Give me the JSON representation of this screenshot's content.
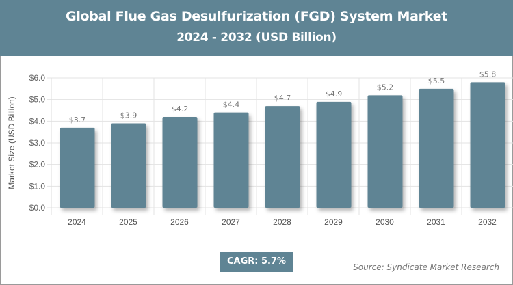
{
  "header": {
    "title": "Global Flue Gas Desulfurization (FGD) System Market",
    "subtitle": "2024 - 2032 (USD Billion)"
  },
  "cagr": "CAGR: 5.7%",
  "source": "Source: Syndicate Market Research",
  "colors": {
    "bar": "#5f8494",
    "header": "#5f8494"
  },
  "chart_data": {
    "type": "bar",
    "title": "Global Flue Gas Desulfurization (FGD) System Market",
    "subtitle": "2024 - 2032 (USD Billion)",
    "xlabel": "",
    "ylabel": "Market Size (USD Billion)",
    "categories": [
      "2024",
      "2025",
      "2026",
      "2027",
      "2028",
      "2029",
      "2030",
      "2031",
      "2032"
    ],
    "values": [
      3.7,
      3.9,
      4.2,
      4.4,
      4.7,
      4.9,
      5.2,
      5.5,
      5.8
    ],
    "data_labels": [
      "$3.7",
      "$3.9",
      "$4.2",
      "$4.4",
      "$4.7",
      "$4.9",
      "$5.2",
      "$5.5",
      "$5.8"
    ],
    "yticks": [
      "$0.0",
      "$1.0",
      "$2.0",
      "$3.0",
      "$4.0",
      "$5.0",
      "$6.0"
    ],
    "ylim": [
      0,
      6
    ],
    "grid": true,
    "legend": "none"
  }
}
